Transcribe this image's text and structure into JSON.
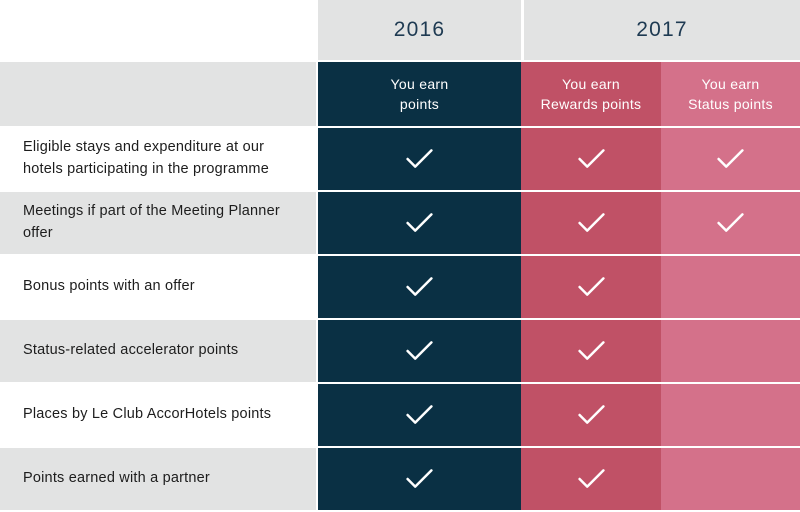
{
  "colors": {
    "navy": "#0a3044",
    "red": "#c05166",
    "pink": "#d4718a",
    "gray": "#e2e3e3",
    "year_text": "#1e3a52",
    "label_text": "#1d1d1d",
    "check": "#ffffff"
  },
  "chart_data": {
    "type": "table",
    "title": "",
    "column_groups": [
      {
        "label": "2016",
        "span": 1
      },
      {
        "label": "2017",
        "span": 2
      }
    ],
    "columns": [
      "You earn\npoints",
      "You earn\nRewards points",
      "You earn\nStatus points"
    ],
    "rows": [
      {
        "label": "Eligible stays and expenditure at our\nhotels participating in the programme",
        "values": [
          true,
          true,
          true
        ]
      },
      {
        "label": "Meetings if part of the Meeting Planner\noffer",
        "values": [
          true,
          true,
          true
        ]
      },
      {
        "label": "Bonus points with an offer",
        "values": [
          true,
          true,
          false
        ]
      },
      {
        "label": "Status-related accelerator points",
        "values": [
          true,
          true,
          false
        ]
      },
      {
        "label": "Places by Le Club AccorHotels points",
        "values": [
          true,
          true,
          false
        ]
      },
      {
        "label": "Points earned with a partner",
        "values": [
          true,
          true,
          false
        ]
      }
    ]
  }
}
